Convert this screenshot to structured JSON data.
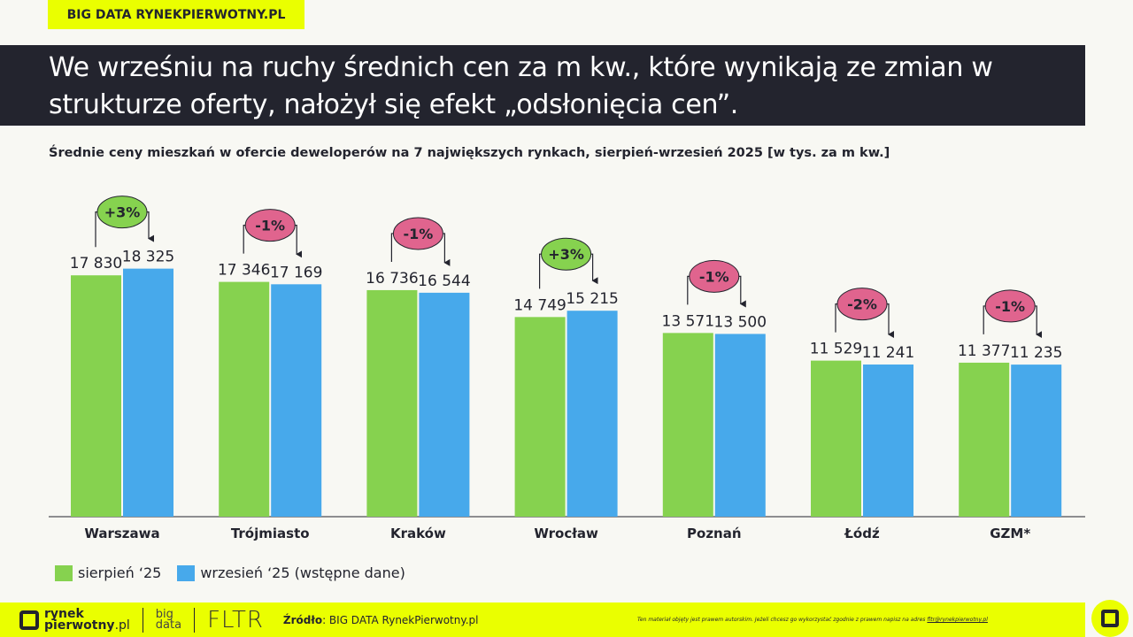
{
  "header": {
    "tag": "BIG DATA RYNEKPIERWOTNY.PL",
    "title": "We wrześniu na ruchy średnich cen za m kw., które wynikają ze zmian w strukturze oferty, nałożył się efekt „odsłonięcia cen”."
  },
  "chart_data": {
    "type": "bar",
    "title": "Średnie ceny mieszkań w ofercie deweloperów na 7 największych rynkach, sierpień-wrzesień 2025 [w tys. za m kw.]",
    "categories": [
      "Warszawa",
      "Trójmiasto",
      "Kraków",
      "Wrocław",
      "Poznań",
      "Łódź",
      "GZM*"
    ],
    "series": [
      {
        "name": "sierpień ‘25",
        "color": "#86d24f",
        "values": [
          17830,
          17346,
          16736,
          14749,
          13571,
          11529,
          11377
        ],
        "labels": [
          "17 830",
          "17 346",
          "16 736",
          "14 749",
          "13 571",
          "11 529",
          "11 377"
        ]
      },
      {
        "name": "wrzesień ‘25 (wstępne dane)",
        "color": "#47a9eb",
        "values": [
          18325,
          17169,
          16544,
          15215,
          13500,
          11241,
          11235
        ],
        "labels": [
          "18 325",
          "17 169",
          "16 544",
          "15 215",
          "13 500",
          "11 241",
          "11 235"
        ]
      }
    ],
    "changes": [
      "+3%",
      "-1%",
      "-1%",
      "+3%",
      "-1%",
      "-2%",
      "-1%"
    ],
    "change_colors": {
      "positive": "#86d24f",
      "negative": "#e0648e"
    },
    "ylim": [
      0,
      20000
    ],
    "grid": false,
    "legend": "bottom-left"
  },
  "footer": {
    "brand_line1": "rynek",
    "brand_line2": "pierwotny",
    "brand_suffix": ".pl",
    "bigdata_line1": "big",
    "bigdata_line2": "data",
    "fltr": "FLTR",
    "source_label": "Źródło",
    "source_value": ": BIG DATA RynekPierwotny.pl",
    "copyright": "Ten materiał objęty jest prawem autorskim. Jeżeli chcesz go wykorzystać zgodnie z prawem napisz na adres",
    "email": "fltr@rynekpierwotny.pl"
  }
}
